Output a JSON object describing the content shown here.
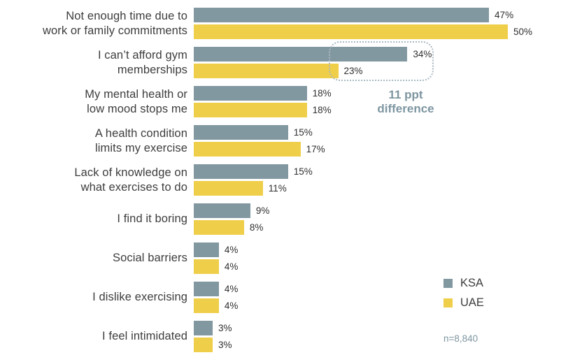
{
  "chart_data": {
    "type": "bar",
    "orientation": "horizontal",
    "title": "",
    "categories": [
      "Not enough time due to\nwork or family commitments",
      "I can’t afford gym\nmemberships",
      "My mental health or\nlow mood stops me",
      "A health condition\nlimits my exercise",
      "Lack of knowledge on\nwhat exercises to do",
      "I find it boring",
      "Social barriers",
      "I dislike exercising",
      "I feel intimidated"
    ],
    "series": [
      {
        "name": "KSA",
        "color": "#8298A1",
        "values": [
          47,
          34,
          18,
          15,
          15,
          9,
          4,
          4,
          3
        ]
      },
      {
        "name": "UAE",
        "color": "#EFCE4A",
        "values": [
          50,
          23,
          18,
          17,
          11,
          8,
          4,
          4,
          3
        ]
      }
    ],
    "value_suffix": "%",
    "xlim": [
      0,
      50
    ],
    "grid": false,
    "legend_position": "bottom-right",
    "annotation": {
      "text": "11 ppt\ndifference",
      "color": "#7E96A1",
      "highlighted_category": "I can’t afford gym\nmemberships"
    },
    "note": {
      "text": "n=8,840",
      "color": "#7E96A1"
    }
  }
}
